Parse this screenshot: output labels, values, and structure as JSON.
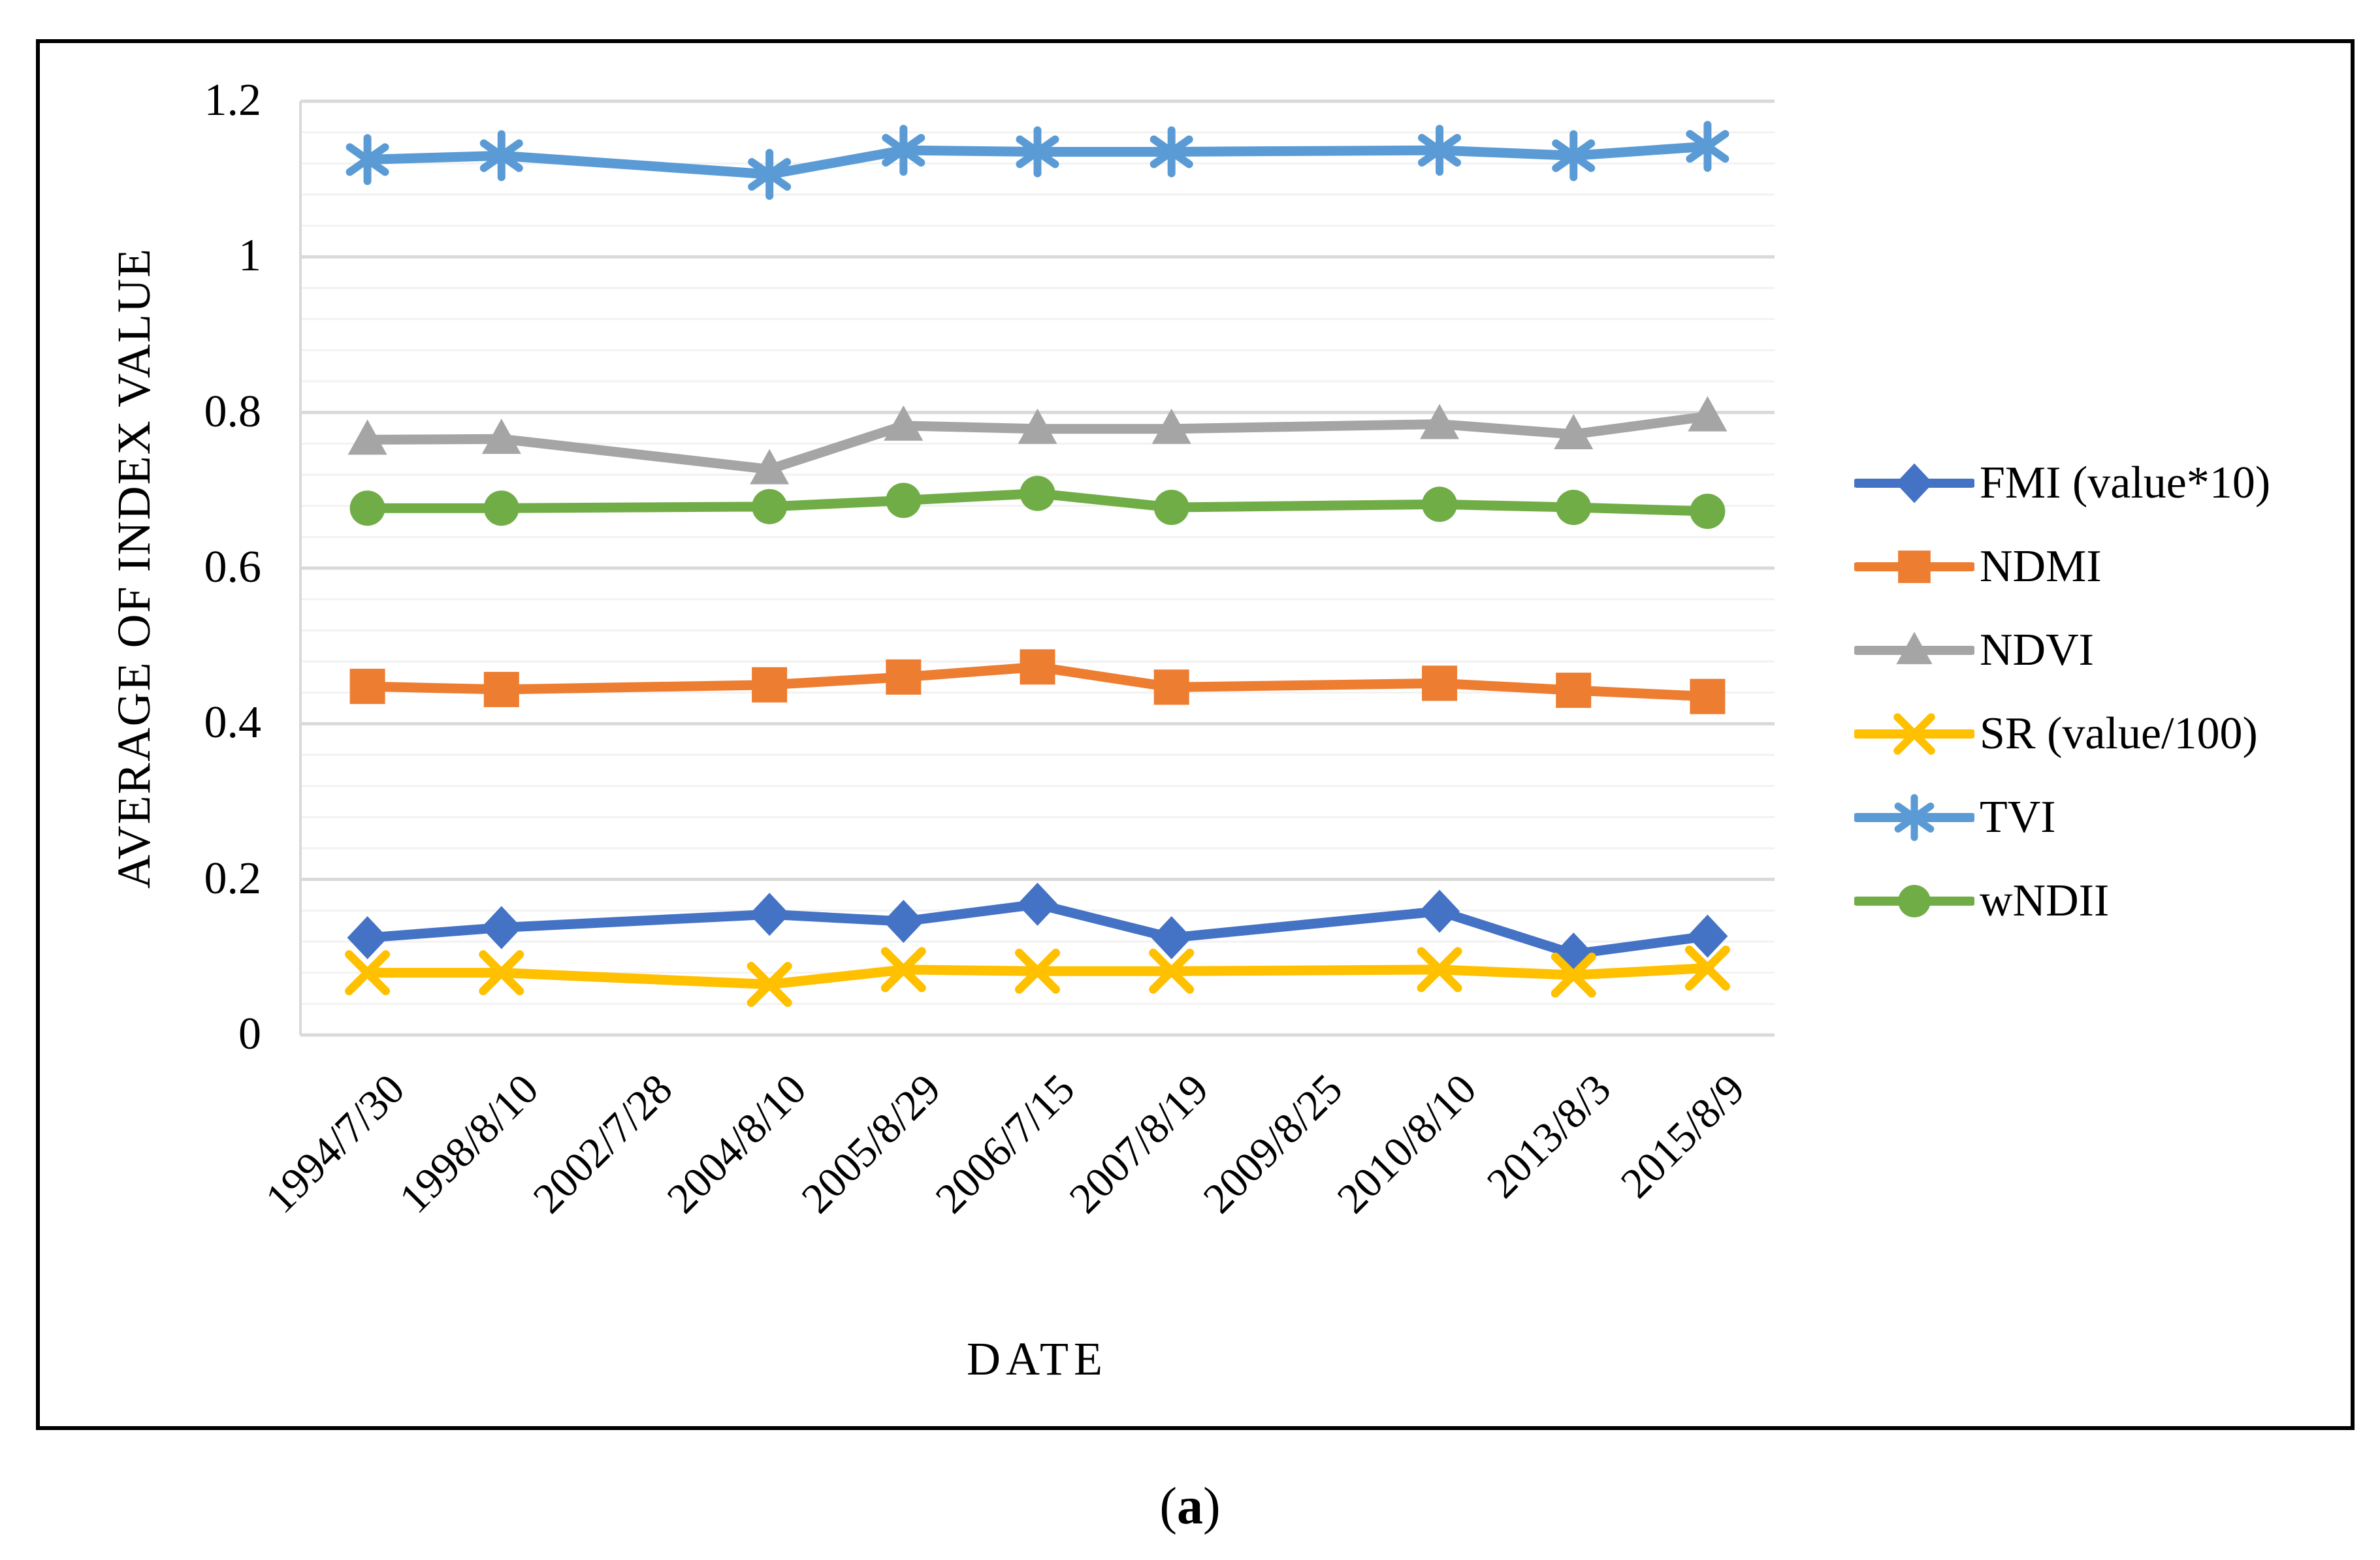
{
  "caption": {
    "open": "(",
    "letter": "a",
    "close": ")"
  },
  "colors": {
    "grid_major": "#D9D9D9",
    "grid_minor": "#F2F2F2",
    "axis_line": "#D9D9D9",
    "frame_border": "#000000",
    "text": "#000000"
  },
  "chart_data": {
    "type": "line",
    "title": "",
    "xlabel": "DATE",
    "ylabel": "AVERAGE OF INDEX VALUE",
    "ylim": [
      0,
      1.2
    ],
    "y_major_unit": 0.2,
    "y_minor_unit": 0.04,
    "y_tick_labels": [
      "0",
      "0.2",
      "0.4",
      "0.6",
      "0.8",
      "1",
      "1.2"
    ],
    "grid": "horizontal major + minor",
    "legend_position": "right",
    "missing_data_note": "no markers at 2002/7/28 and 2009/8/25; lines interpolate across",
    "categories": [
      "1994/7/30",
      "1998/8/10",
      "2002/7/28",
      "2004/8/10",
      "2005/8/29",
      "2006/7/15",
      "2007/8/19",
      "2009/8/25",
      "2010/8/10",
      "2013/8/3",
      "2015/8/9"
    ],
    "series": [
      {
        "id": "fmi",
        "name": "FMI (value*10)",
        "color": "#4472C4",
        "marker": "diamond",
        "values": [
          0.125,
          0.138,
          null,
          0.155,
          0.146,
          0.168,
          0.125,
          null,
          0.159,
          0.104,
          0.127
        ]
      },
      {
        "id": "ndmi",
        "name": "NDMI",
        "color": "#ED7D31",
        "marker": "square",
        "values": [
          0.448,
          0.444,
          null,
          0.45,
          0.46,
          0.473,
          0.447,
          null,
          0.452,
          0.443,
          0.435
        ]
      },
      {
        "id": "ndvi",
        "name": "NDVI",
        "color": "#A5A5A5",
        "marker": "triangle",
        "values": [
          0.765,
          0.766,
          null,
          0.727,
          0.783,
          0.779,
          0.779,
          null,
          0.785,
          0.772,
          0.795
        ]
      },
      {
        "id": "sr",
        "name": "SR (value/100)",
        "color": "#FFC000",
        "marker": "x",
        "values": [
          0.08,
          0.08,
          null,
          0.065,
          0.084,
          0.082,
          0.082,
          null,
          0.084,
          0.077,
          0.086
        ]
      },
      {
        "id": "tvi",
        "name": "TVI",
        "color": "#5B9BD5",
        "marker": "asterisk",
        "values": [
          1.125,
          1.13,
          null,
          1.106,
          1.137,
          1.135,
          1.135,
          null,
          1.137,
          1.13,
          1.142
        ]
      },
      {
        "id": "wndii",
        "name": "wNDII",
        "color": "#70AD47",
        "marker": "circle",
        "values": [
          0.677,
          0.677,
          null,
          0.679,
          0.687,
          0.696,
          0.678,
          null,
          0.682,
          0.678,
          0.673
        ]
      }
    ]
  }
}
